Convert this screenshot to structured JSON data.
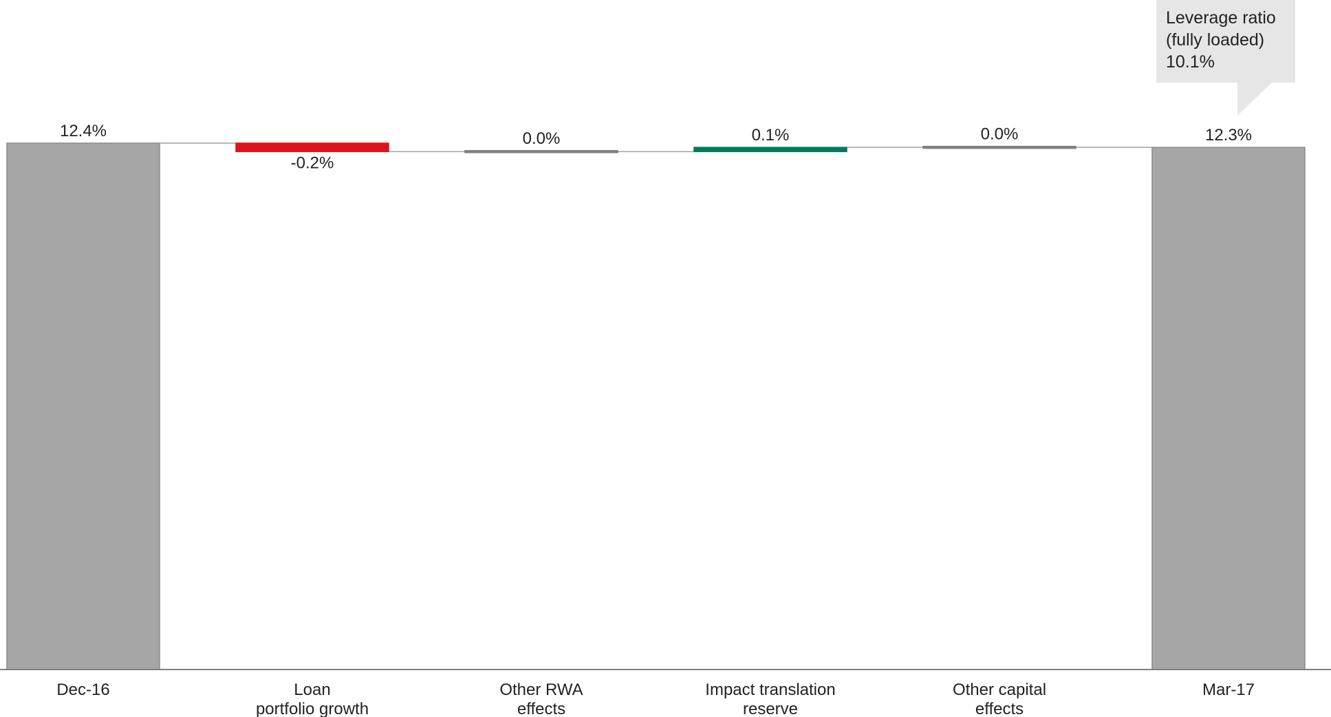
{
  "chart_data": {
    "type": "bar",
    "subtype": "waterfall",
    "categories": [
      [
        "Dec-16"
      ],
      [
        "Loan",
        "portfolio growth"
      ],
      [
        "Other RWA",
        "effects"
      ],
      [
        "Impact translation",
        "reserve"
      ],
      [
        "Other capital",
        "effects"
      ],
      [
        "Mar-17"
      ]
    ],
    "steps": [
      {
        "kind": "total",
        "value": 12.4,
        "label": "12.4%"
      },
      {
        "kind": "delta",
        "value": -0.2,
        "label": "-0.2%"
      },
      {
        "kind": "delta",
        "value": 0.0,
        "label": "0.0%"
      },
      {
        "kind": "delta",
        "value": 0.1,
        "label": "0.1%"
      },
      {
        "kind": "delta",
        "value": 0.0,
        "label": "0.0%"
      },
      {
        "kind": "total",
        "value": 12.3,
        "label": "12.3%"
      }
    ],
    "ylim": [
      0,
      12.4
    ],
    "grid": false,
    "colors": {
      "total": "#a6a6a6",
      "negative": "#d9141c",
      "positive": "#00785a",
      "neutral": "#808080",
      "connector": "#a0a0a0",
      "axis": "#7f7f7f"
    },
    "callout": {
      "lines": [
        "Leverage ratio",
        "(fully loaded)",
        "10.1%"
      ],
      "fill": "#e6e6e6"
    }
  }
}
